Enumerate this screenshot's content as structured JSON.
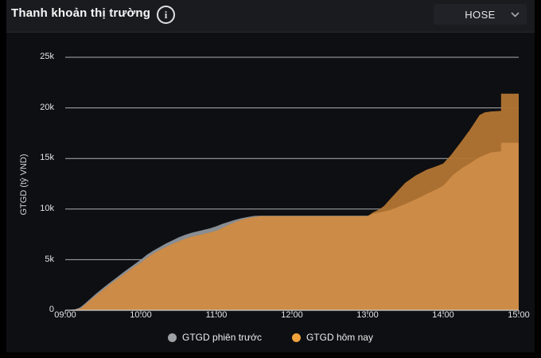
{
  "header": {
    "title": "Thanh khoản thị trường",
    "info_icon_glyph": "i",
    "exchange_selector": {
      "value": "HOSE"
    }
  },
  "chart_data": {
    "type": "area",
    "title": "Thanh khoản thị trường",
    "ylabel": "GTGD (tỷ VND)",
    "y_unit_suffix": "k",
    "ylim_k": [
      0,
      25
    ],
    "y_tick_labels": [
      "25k",
      "20k",
      "15k",
      "10k",
      "5k",
      "0"
    ],
    "y_tick_values_k": [
      25,
      20,
      15,
      10,
      5,
      0
    ],
    "x_tick_labels": [
      "09:00",
      "10:00",
      "11:00",
      "12:00",
      "13:00",
      "14:00",
      "15:00"
    ],
    "x_range_minutes": [
      0,
      360
    ],
    "grid": true,
    "grid_color": "#d4d6d9",
    "axis_color": "#cfd1d4",
    "overlap_color": "#cd8c47",
    "legend_position": "bottom",
    "legend": [
      {
        "label": "GTGD phiên trước",
        "color": "#9da0a4"
      },
      {
        "label": "GTGD hôm nay",
        "color": "#f0a23c"
      }
    ],
    "series": [
      {
        "name": "GTGD phiên trước",
        "color": "#8f949a",
        "points": [
          [
            0,
            0
          ],
          [
            8,
            0.1
          ],
          [
            12,
            0.3
          ],
          [
            16,
            0.7
          ],
          [
            20,
            1.15
          ],
          [
            25,
            1.7
          ],
          [
            30,
            2.2
          ],
          [
            35,
            2.7
          ],
          [
            40,
            3.15
          ],
          [
            45,
            3.65
          ],
          [
            50,
            4.1
          ],
          [
            55,
            4.55
          ],
          [
            60,
            5.0
          ],
          [
            65,
            5.5
          ],
          [
            70,
            5.9
          ],
          [
            75,
            6.25
          ],
          [
            80,
            6.6
          ],
          [
            85,
            6.9
          ],
          [
            90,
            7.2
          ],
          [
            95,
            7.45
          ],
          [
            100,
            7.65
          ],
          [
            105,
            7.8
          ],
          [
            110,
            7.95
          ],
          [
            115,
            8.1
          ],
          [
            120,
            8.3
          ],
          [
            125,
            8.55
          ],
          [
            130,
            8.75
          ],
          [
            135,
            8.95
          ],
          [
            140,
            9.1
          ],
          [
            145,
            9.22
          ],
          [
            150,
            9.32
          ],
          [
            155,
            9.35
          ],
          [
            240,
            9.35
          ],
          [
            245,
            9.55
          ],
          [
            252,
            9.75
          ],
          [
            258,
            9.9
          ],
          [
            264,
            10.2
          ],
          [
            270,
            10.5
          ],
          [
            278,
            10.95
          ],
          [
            287,
            11.5
          ],
          [
            294,
            11.9
          ],
          [
            300,
            12.3
          ],
          [
            308,
            13.4
          ],
          [
            315,
            14.05
          ],
          [
            321,
            14.5
          ],
          [
            327,
            15.0
          ],
          [
            333,
            15.35
          ],
          [
            338,
            15.6
          ],
          [
            346,
            15.7
          ],
          [
            346.01,
            16.55
          ],
          [
            360,
            16.55
          ]
        ]
      },
      {
        "name": "GTGD hôm nay",
        "color": "#b07433",
        "points": [
          [
            0,
            0
          ],
          [
            8,
            0.05
          ],
          [
            12,
            0.15
          ],
          [
            16,
            0.55
          ],
          [
            20,
            1.0
          ],
          [
            25,
            1.5
          ],
          [
            30,
            2.0
          ],
          [
            35,
            2.5
          ],
          [
            40,
            2.95
          ],
          [
            45,
            3.4
          ],
          [
            50,
            3.85
          ],
          [
            55,
            4.3
          ],
          [
            60,
            4.7
          ],
          [
            65,
            5.2
          ],
          [
            70,
            5.6
          ],
          [
            75,
            5.95
          ],
          [
            80,
            6.25
          ],
          [
            85,
            6.55
          ],
          [
            90,
            6.8
          ],
          [
            95,
            7.05
          ],
          [
            100,
            7.25
          ],
          [
            105,
            7.4
          ],
          [
            110,
            7.55
          ],
          [
            115,
            7.7
          ],
          [
            120,
            7.85
          ],
          [
            125,
            8.15
          ],
          [
            130,
            8.45
          ],
          [
            135,
            8.7
          ],
          [
            140,
            8.95
          ],
          [
            145,
            9.1
          ],
          [
            150,
            9.2
          ],
          [
            155,
            9.3
          ],
          [
            240,
            9.3
          ],
          [
            244,
            9.65
          ],
          [
            249,
            9.95
          ],
          [
            253,
            10.3
          ],
          [
            258,
            11.0
          ],
          [
            264,
            11.8
          ],
          [
            270,
            12.6
          ],
          [
            278,
            13.3
          ],
          [
            287,
            13.9
          ],
          [
            294,
            14.2
          ],
          [
            300,
            14.5
          ],
          [
            306,
            15.3
          ],
          [
            314,
            16.6
          ],
          [
            321,
            17.8
          ],
          [
            329,
            19.3
          ],
          [
            333,
            19.55
          ],
          [
            338,
            19.65
          ],
          [
            346,
            19.7
          ],
          [
            346.01,
            21.4
          ],
          [
            360,
            21.4
          ]
        ]
      }
    ]
  }
}
